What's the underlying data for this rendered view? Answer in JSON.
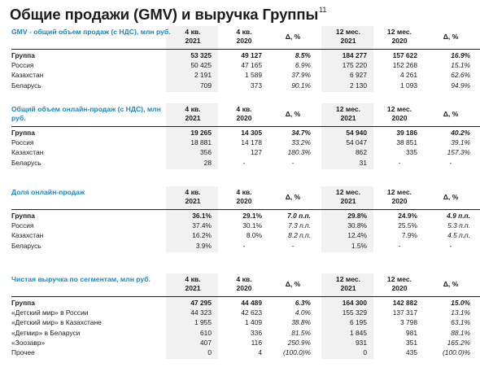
{
  "title": "Общие продажи (GMV) и выручка Группы",
  "title_footnote": "11",
  "tables": [
    {
      "title": "GMV - общий объем продаж (с НДС), млн руб.",
      "columns": [
        "4 кв. 2021",
        "4 кв. 2020",
        "Δ, %",
        "12 мес. 2021",
        "12 мес. 2020",
        "Δ, %"
      ],
      "rows": [
        {
          "label": "Группа",
          "values": [
            "53 325",
            "49 127",
            "8.5%",
            "184 277",
            "157 622",
            "16.9%"
          ]
        },
        {
          "label": "Россия",
          "values": [
            "50 425",
            "47 165",
            "6.9%",
            "175 220",
            "152 268",
            "15.1%"
          ]
        },
        {
          "label": "Казахстан",
          "values": [
            "2 191",
            "1 589",
            "37.9%",
            "6 927",
            "4 261",
            "62.6%"
          ]
        },
        {
          "label": "Беларусь",
          "values": [
            "709",
            "373",
            "90.1%",
            "2 130",
            "1 093",
            "94.9%"
          ]
        }
      ]
    },
    {
      "title": "Общий объем онлайн-продаж (с НДС), млн руб.",
      "columns": [
        "4 кв. 2021",
        "4 кв. 2020",
        "Δ, %",
        "12 мес. 2021",
        "12 мес. 2020",
        "Δ, %"
      ],
      "rows": [
        {
          "label": "Группа",
          "values": [
            "19 265",
            "14 305",
            "34.7%",
            "54 940",
            "39 186",
            "40.2%"
          ]
        },
        {
          "label": "Россия",
          "values": [
            "18 881",
            "14 178",
            "33.2%",
            "54 047",
            "38 851",
            "39.1%"
          ]
        },
        {
          "label": "Казахстан",
          "values": [
            "356",
            "127",
            "180.3%",
            "862",
            "335",
            "157.3%"
          ]
        },
        {
          "label": "Беларусь",
          "values": [
            "28",
            "-",
            "-",
            "31",
            "-",
            "-"
          ]
        }
      ]
    },
    {
      "title": "Доля онлайн-продаж",
      "columns": [
        "4 кв. 2021",
        "4 кв. 2020",
        "Δ, %",
        "12 мес. 2021",
        "12 мес. 2020",
        "Δ, %"
      ],
      "rows": [
        {
          "label": "Группа",
          "values": [
            "36.1%",
            "29.1%",
            "7.0 п.п.",
            "29.8%",
            "24.9%",
            "4.9 п.п."
          ]
        },
        {
          "label": "Россия",
          "values": [
            "37.4%",
            "30.1%",
            "7.3 п.п.",
            "30.8%",
            "25.5%",
            "5.3 п.п."
          ]
        },
        {
          "label": "Казахстан",
          "values": [
            "16.2%",
            "8.0%",
            "8.2 п.п.",
            "12.4%",
            "7.9%",
            "4.5 п.п."
          ]
        },
        {
          "label": "Беларусь",
          "values": [
            "3.9%",
            "-",
            "-",
            "1.5%",
            "-",
            "-"
          ]
        }
      ]
    },
    {
      "title": "Чистая выручка по сегментам, млн руб.",
      "columns": [
        "4 кв. 2021",
        "4 кв. 2020",
        "Δ, %",
        "12 мес. 2021",
        "12 мес. 2020",
        "Δ, %"
      ],
      "rows": [
        {
          "label": "Группа",
          "values": [
            "47 295",
            "44 489",
            "6.3%",
            "164 300",
            "142 882",
            "15.0%"
          ]
        },
        {
          "label": "«Детский мир» в России",
          "values": [
            "44 323",
            "42 623",
            "4.0%",
            "155 329",
            "137 317",
            "13.1%"
          ]
        },
        {
          "label": "«Детский мир» в Казахстане",
          "values": [
            "1 955",
            "1 409",
            "38.8%",
            "6 195",
            "3 798",
            "63.1%"
          ]
        },
        {
          "label": "«Детмир» в Беларуси",
          "values": [
            "610",
            "336",
            "81.5%",
            "1 845",
            "981",
            "88.1%"
          ]
        },
        {
          "label": "«Зоозавр»",
          "values": [
            "407",
            "116",
            "250.9%",
            "931",
            "351",
            "165.2%"
          ]
        },
        {
          "label": "Прочее",
          "values": [
            "0",
            "4",
            "(100.0)%",
            "0",
            "435",
            "(100.0)%"
          ]
        }
      ]
    }
  ]
}
